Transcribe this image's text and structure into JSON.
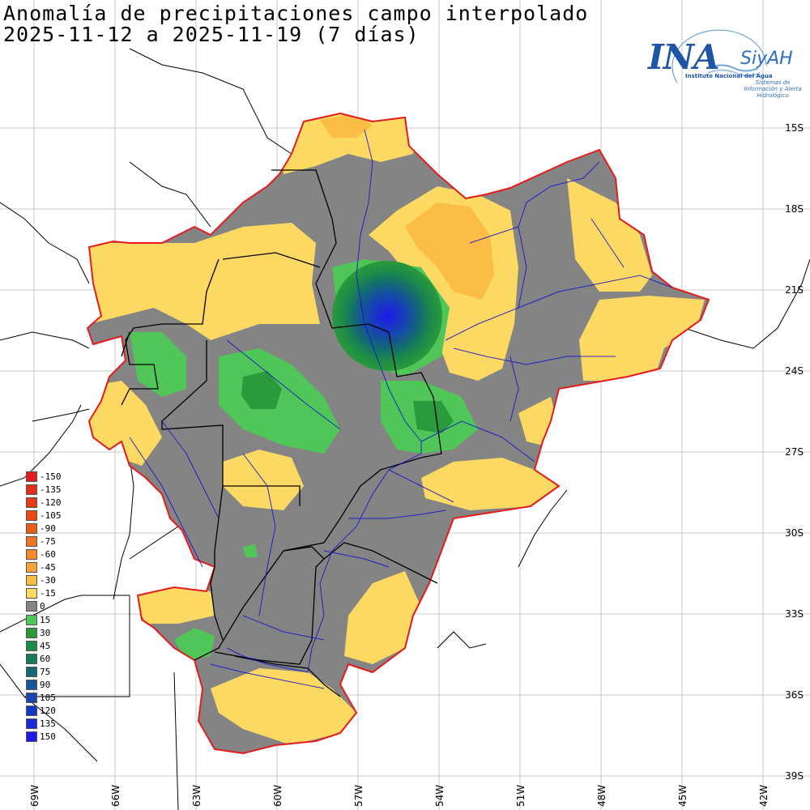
{
  "title": {
    "line1": "Anomalía de precipitaciones campo interpolado",
    "line2": "2025-11-12 a 2025-11-19 (7 días)"
  },
  "logo": {
    "name": "INA",
    "app": "SiyAH",
    "institute": "Instituto Nacional del Agua",
    "subtitle": "Sistemas de Información y Alerta Hidrológico"
  },
  "legend": [
    {
      "label": "-150",
      "color": "#e51b1b"
    },
    {
      "label": "-135",
      "color": "#e52b1a"
    },
    {
      "label": "-120",
      "color": "#e83a17"
    },
    {
      "label": "-105",
      "color": "#e94a15"
    },
    {
      "label": "-90",
      "color": "#ec5e16"
    },
    {
      "label": "-75",
      "color": "#ef7420"
    },
    {
      "label": "-60",
      "color": "#f38a2a"
    },
    {
      "label": "-45",
      "color": "#f7a537"
    },
    {
      "label": "-30",
      "color": "#fbbd45"
    },
    {
      "label": "-15",
      "color": "#fcd962"
    },
    {
      "label": "0",
      "color": "#848484"
    },
    {
      "label": "15",
      "color": "#4fc657"
    },
    {
      "label": "30",
      "color": "#2a9a3c"
    },
    {
      "label": "45",
      "color": "#1c8a48"
    },
    {
      "label": "60",
      "color": "#167a5e"
    },
    {
      "label": "75",
      "color": "#136a72"
    },
    {
      "label": "90",
      "color": "#15569a"
    },
    {
      "label": "105",
      "color": "#1645b0"
    },
    {
      "label": "120",
      "color": "#1636c6"
    },
    {
      "label": "135",
      "color": "#1a28d8"
    },
    {
      "label": "150",
      "color": "#1d1aea"
    }
  ],
  "lat_labels": [
    "15S",
    "18S",
    "21S",
    "24S",
    "27S",
    "30S",
    "33S",
    "36S",
    "39S"
  ],
  "lon_labels": [
    "69W",
    "66W",
    "63W",
    "60W",
    "57W",
    "54W",
    "51W",
    "48W",
    "45W",
    "42W"
  ],
  "colors": {
    "zero": "#848484",
    "light_dry": "#fcd962",
    "dry": "#fbbd45",
    "moderate_dry": "#f7a537",
    "light_wet": "#4fc657",
    "wet": "#2a9a3c",
    "very_wet": "#15569a",
    "extreme_wet": "#1d1aea",
    "basin_border": "#e51b1b",
    "rivers": "#1010d0"
  }
}
